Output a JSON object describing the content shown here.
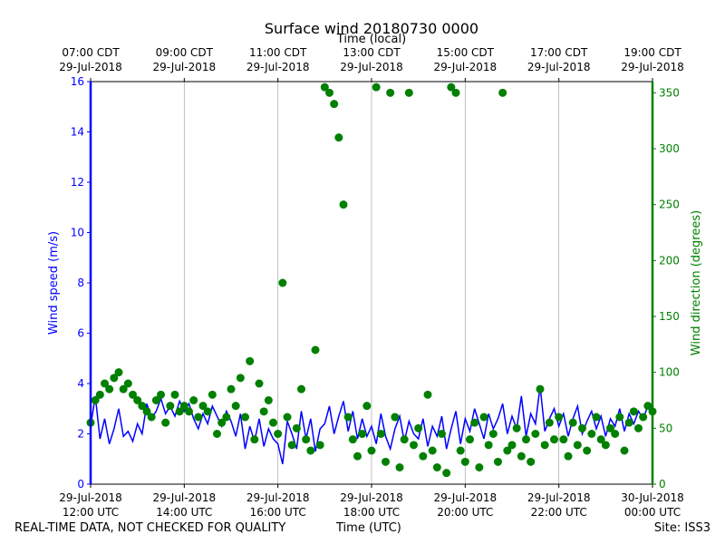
{
  "chart_data": {
    "type": "line",
    "title": "Surface wind 20180730 0000",
    "x2label": "Time (local)",
    "xlabel": "Time (UTC)",
    "ylabel": "Wind speed (m/s)",
    "y2label": "Wind direction (degrees)",
    "note_left": "REAL-TIME DATA, NOT CHECKED FOR QUALITY",
    "note_right": "Site: ISS3",
    "grid": "x",
    "xlim": [
      "2018-07-29T12:00",
      "2018-07-30T00:00"
    ],
    "xticks": [
      {
        "value": "2018-07-29T12:00",
        "label": "29-Jul-2018\n12:00 UTC"
      },
      {
        "value": "2018-07-29T14:00",
        "label": "29-Jul-2018\n14:00 UTC"
      },
      {
        "value": "2018-07-29T16:00",
        "label": "29-Jul-2018\n16:00 UTC"
      },
      {
        "value": "2018-07-29T18:00",
        "label": "29-Jul-2018\n18:00 UTC"
      },
      {
        "value": "2018-07-29T20:00",
        "label": "29-Jul-2018\n20:00 UTC"
      },
      {
        "value": "2018-07-29T22:00",
        "label": "29-Jul-2018\n22:00 UTC"
      },
      {
        "value": "2018-07-30T00:00",
        "label": "30-Jul-2018\n00:00 UTC"
      }
    ],
    "x2ticks": [
      {
        "value": "2018-07-29T12:00",
        "label": "07:00 CDT\n29-Jul-2018"
      },
      {
        "value": "2018-07-29T14:00",
        "label": "09:00 CDT\n29-Jul-2018"
      },
      {
        "value": "2018-07-29T16:00",
        "label": "11:00 CDT\n29-Jul-2018"
      },
      {
        "value": "2018-07-29T18:00",
        "label": "13:00 CDT\n29-Jul-2018"
      },
      {
        "value": "2018-07-29T20:00",
        "label": "15:00 CDT\n29-Jul-2018"
      },
      {
        "value": "2018-07-29T22:00",
        "label": "17:00 CDT\n29-Jul-2018"
      },
      {
        "value": "2018-07-30T00:00",
        "label": "19:00 CDT\n29-Jul-2018"
      }
    ],
    "ylim": [
      0,
      16
    ],
    "yticks": [
      0,
      2,
      4,
      6,
      8,
      10,
      12,
      14,
      16
    ],
    "ycolor": "#0000ff",
    "y2lim": [
      0,
      360
    ],
    "y2ticks": [
      0,
      50,
      100,
      150,
      200,
      250,
      300,
      350
    ],
    "y2color": "#008000",
    "x": [
      "2018-07-29T12:00",
      "2018-07-29T12:06",
      "2018-07-29T12:12",
      "2018-07-29T12:18",
      "2018-07-29T12:24",
      "2018-07-29T12:30",
      "2018-07-29T12:36",
      "2018-07-29T12:42",
      "2018-07-29T12:48",
      "2018-07-29T12:54",
      "2018-07-29T13:00",
      "2018-07-29T13:06",
      "2018-07-29T13:12",
      "2018-07-29T13:18",
      "2018-07-29T13:24",
      "2018-07-29T13:30",
      "2018-07-29T13:36",
      "2018-07-29T13:42",
      "2018-07-29T13:48",
      "2018-07-29T13:54",
      "2018-07-29T14:00",
      "2018-07-29T14:06",
      "2018-07-29T14:12",
      "2018-07-29T14:18",
      "2018-07-29T14:24",
      "2018-07-29T14:30",
      "2018-07-29T14:36",
      "2018-07-29T14:42",
      "2018-07-29T14:48",
      "2018-07-29T14:54",
      "2018-07-29T15:00",
      "2018-07-29T15:06",
      "2018-07-29T15:12",
      "2018-07-29T15:18",
      "2018-07-29T15:24",
      "2018-07-29T15:30",
      "2018-07-29T15:36",
      "2018-07-29T15:42",
      "2018-07-29T15:48",
      "2018-07-29T15:54",
      "2018-07-29T16:00",
      "2018-07-29T16:06",
      "2018-07-29T16:12",
      "2018-07-29T16:18",
      "2018-07-29T16:24",
      "2018-07-29T16:30",
      "2018-07-29T16:36",
      "2018-07-29T16:42",
      "2018-07-29T16:48",
      "2018-07-29T16:54",
      "2018-07-29T17:00",
      "2018-07-29T17:06",
      "2018-07-29T17:12",
      "2018-07-29T17:18",
      "2018-07-29T17:24",
      "2018-07-29T17:30",
      "2018-07-29T17:36",
      "2018-07-29T17:42",
      "2018-07-29T17:48",
      "2018-07-29T17:54",
      "2018-07-29T18:00",
      "2018-07-29T18:06",
      "2018-07-29T18:12",
      "2018-07-29T18:18",
      "2018-07-29T18:24",
      "2018-07-29T18:30",
      "2018-07-29T18:36",
      "2018-07-29T18:42",
      "2018-07-29T18:48",
      "2018-07-29T18:54",
      "2018-07-29T19:00",
      "2018-07-29T19:06",
      "2018-07-29T19:12",
      "2018-07-29T19:18",
      "2018-07-29T19:24",
      "2018-07-29T19:30",
      "2018-07-29T19:36",
      "2018-07-29T19:42",
      "2018-07-29T19:48",
      "2018-07-29T19:54",
      "2018-07-29T20:00",
      "2018-07-29T20:06",
      "2018-07-29T20:12",
      "2018-07-29T20:18",
      "2018-07-29T20:24",
      "2018-07-29T20:30",
      "2018-07-29T20:36",
      "2018-07-29T20:42",
      "2018-07-29T20:48",
      "2018-07-29T20:54",
      "2018-07-29T21:00",
      "2018-07-29T21:06",
      "2018-07-29T21:12",
      "2018-07-29T21:18",
      "2018-07-29T21:24",
      "2018-07-29T21:30",
      "2018-07-29T21:36",
      "2018-07-29T21:42",
      "2018-07-29T21:48",
      "2018-07-29T21:54",
      "2018-07-29T22:00",
      "2018-07-29T22:06",
      "2018-07-29T22:12",
      "2018-07-29T22:18",
      "2018-07-29T22:24",
      "2018-07-29T22:30",
      "2018-07-29T22:36",
      "2018-07-29T22:42",
      "2018-07-29T22:48",
      "2018-07-29T22:54",
      "2018-07-29T23:00",
      "2018-07-29T23:06",
      "2018-07-29T23:12",
      "2018-07-29T23:18",
      "2018-07-29T23:24",
      "2018-07-29T23:30",
      "2018-07-29T23:36",
      "2018-07-29T23:42",
      "2018-07-29T23:48",
      "2018-07-29T23:54",
      "2018-07-30T00:00"
    ],
    "series": [
      {
        "name": "Wind speed",
        "type": "line",
        "axis": "y",
        "color": "#0000ff",
        "values": [
          2.3,
          3.5,
          1.8,
          2.6,
          1.6,
          2.2,
          3.0,
          1.9,
          2.1,
          1.7,
          2.4,
          2.0,
          3.2,
          2.6,
          2.9,
          3.4,
          2.8,
          3.1,
          2.7,
          3.3,
          2.9,
          3.2,
          2.6,
          2.2,
          2.8,
          2.4,
          3.1,
          2.7,
          2.3,
          2.9,
          2.5,
          1.9,
          2.8,
          1.4,
          2.3,
          1.7,
          2.6,
          1.5,
          2.2,
          1.8,
          1.6,
          0.8,
          2.5,
          2.0,
          1.4,
          2.9,
          1.8,
          2.6,
          1.3,
          2.2,
          2.4,
          3.1,
          2.0,
          2.7,
          3.3,
          2.1,
          2.9,
          1.8,
          2.6,
          1.9,
          2.3,
          1.6,
          2.8,
          1.9,
          1.4,
          2.2,
          2.7,
          1.7,
          2.5,
          2.0,
          1.8,
          2.6,
          1.5,
          2.3,
          1.9,
          2.7,
          1.4,
          2.2,
          2.9,
          1.6,
          2.6,
          2.1,
          3.0,
          2.4,
          1.8,
          2.8,
          2.2,
          2.6,
          3.2,
          2.0,
          2.7,
          2.2,
          3.5,
          1.9,
          2.8,
          2.4,
          3.9,
          2.1,
          2.6,
          3.0,
          2.3,
          2.8,
          1.9,
          2.6,
          3.1,
          2.0,
          2.5,
          2.9,
          2.2,
          2.7,
          1.9,
          2.6,
          2.3,
          3.0,
          2.1,
          2.8,
          2.4,
          2.9,
          2.6,
          3.1,
          2.8
        ]
      },
      {
        "name": "Wind direction",
        "type": "scatter",
        "axis": "y2",
        "color": "#008000",
        "values": [
          55,
          75,
          80,
          90,
          85,
          95,
          100,
          85,
          90,
          80,
          75,
          70,
          65,
          60,
          75,
          80,
          55,
          70,
          80,
          65,
          70,
          65,
          75,
          60,
          70,
          65,
          80,
          45,
          55,
          60,
          85,
          70,
          95,
          60,
          110,
          40,
          90,
          65,
          75,
          55,
          45,
          180,
          60,
          35,
          50,
          85,
          40,
          30,
          120,
          35,
          355,
          350,
          340,
          310,
          250,
          60,
          40,
          25,
          45,
          70,
          30,
          355,
          45,
          20,
          350,
          60,
          15,
          40,
          350,
          35,
          50,
          25,
          80,
          30,
          15,
          45,
          10,
          355,
          350,
          30,
          20,
          40,
          55,
          15,
          60,
          35,
          45,
          20,
          350,
          30,
          35,
          50,
          25,
          40,
          20,
          45,
          85,
          35,
          55,
          40,
          60,
          40,
          25,
          55,
          35,
          50,
          30,
          45,
          60,
          40,
          35,
          50,
          45,
          60,
          30,
          55,
          65,
          50,
          60,
          70,
          65
        ]
      }
    ]
  }
}
